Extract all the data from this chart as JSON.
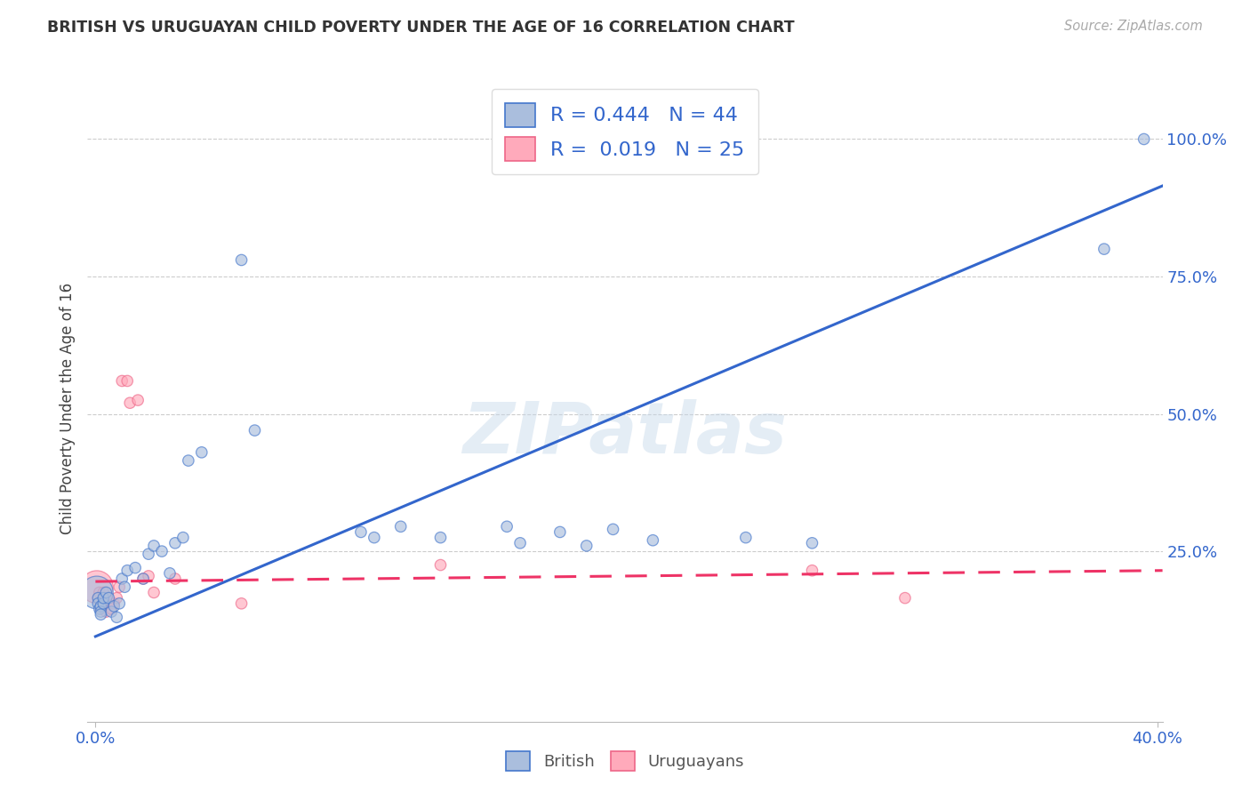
{
  "title": "BRITISH VS URUGUAYAN CHILD POVERTY UNDER THE AGE OF 16 CORRELATION CHART",
  "source": "Source: ZipAtlas.com",
  "ylabel": "Child Poverty Under the Age of 16",
  "watermark": "ZIPatlas",
  "xlim_min": -0.003,
  "xlim_max": 0.402,
  "ylim_min": -0.06,
  "ylim_max": 1.08,
  "british_R": 0.444,
  "british_N": 44,
  "uruguayan_R": 0.019,
  "uruguayan_N": 25,
  "british_color": "#aabedd",
  "british_edge_color": "#4477cc",
  "uruguayan_color": "#ffaabb",
  "uruguayan_edge_color": "#ee6688",
  "british_line_color": "#3366cc",
  "uruguayan_line_color": "#ee3366",
  "axis_tick_color": "#3366cc",
  "title_color": "#333333",
  "source_color": "#aaaaaa",
  "grid_color": "#cccccc",
  "background_color": "#ffffff",
  "ytick_vals": [
    0.25,
    0.5,
    0.75,
    1.0
  ],
  "ytick_labels": [
    "25.0%",
    "50.0%",
    "75.0%",
    "100.0%"
  ],
  "xtick_vals": [
    0.0,
    0.4
  ],
  "xtick_labels": [
    "0.0%",
    "40.0%"
  ],
  "british_trend_x0": 0.0,
  "british_trend_y0": 0.095,
  "british_trend_x1": 0.402,
  "british_trend_y1": 0.915,
  "uruguayan_trend_x0": 0.0,
  "uruguayan_trend_y0": 0.195,
  "uruguayan_trend_x1": 0.402,
  "uruguayan_trend_y1": 0.215,
  "british_x": [
    0.0005,
    0.001,
    0.001,
    0.0015,
    0.002,
    0.002,
    0.002,
    0.003,
    0.003,
    0.004,
    0.005,
    0.006,
    0.007,
    0.008,
    0.009,
    0.01,
    0.011,
    0.012,
    0.015,
    0.018,
    0.02,
    0.022,
    0.025,
    0.028,
    0.03,
    0.033,
    0.035,
    0.04,
    0.055,
    0.06,
    0.1,
    0.105,
    0.115,
    0.13,
    0.155,
    0.16,
    0.175,
    0.185,
    0.195,
    0.21,
    0.245,
    0.27,
    0.38,
    0.395
  ],
  "british_y": [
    0.175,
    0.165,
    0.155,
    0.145,
    0.15,
    0.14,
    0.135,
    0.155,
    0.165,
    0.175,
    0.165,
    0.14,
    0.15,
    0.13,
    0.155,
    0.2,
    0.185,
    0.215,
    0.22,
    0.2,
    0.245,
    0.26,
    0.25,
    0.21,
    0.265,
    0.275,
    0.415,
    0.43,
    0.78,
    0.47,
    0.285,
    0.275,
    0.295,
    0.275,
    0.295,
    0.265,
    0.285,
    0.26,
    0.29,
    0.27,
    0.275,
    0.265,
    0.8,
    1.0
  ],
  "british_sizes": [
    700,
    80,
    80,
    80,
    80,
    80,
    80,
    80,
    80,
    80,
    80,
    80,
    80,
    80,
    80,
    80,
    80,
    80,
    80,
    80,
    80,
    80,
    80,
    80,
    80,
    80,
    80,
    80,
    80,
    80,
    80,
    80,
    80,
    80,
    80,
    80,
    80,
    80,
    80,
    80,
    80,
    80,
    80,
    80
  ],
  "uruguayan_x": [
    0.0005,
    0.001,
    0.0015,
    0.002,
    0.002,
    0.003,
    0.003,
    0.004,
    0.005,
    0.006,
    0.007,
    0.008,
    0.009,
    0.01,
    0.012,
    0.013,
    0.016,
    0.018,
    0.02,
    0.022,
    0.03,
    0.055,
    0.13,
    0.27,
    0.305
  ],
  "uruguayan_y": [
    0.185,
    0.165,
    0.175,
    0.155,
    0.145,
    0.16,
    0.175,
    0.14,
    0.16,
    0.145,
    0.155,
    0.165,
    0.185,
    0.56,
    0.56,
    0.52,
    0.525,
    0.2,
    0.205,
    0.175,
    0.2,
    0.155,
    0.225,
    0.215,
    0.165
  ],
  "uruguayan_sizes": [
    700,
    80,
    80,
    80,
    80,
    80,
    80,
    80,
    80,
    80,
    80,
    80,
    80,
    80,
    80,
    80,
    80,
    80,
    80,
    80,
    80,
    80,
    80,
    80,
    80
  ]
}
